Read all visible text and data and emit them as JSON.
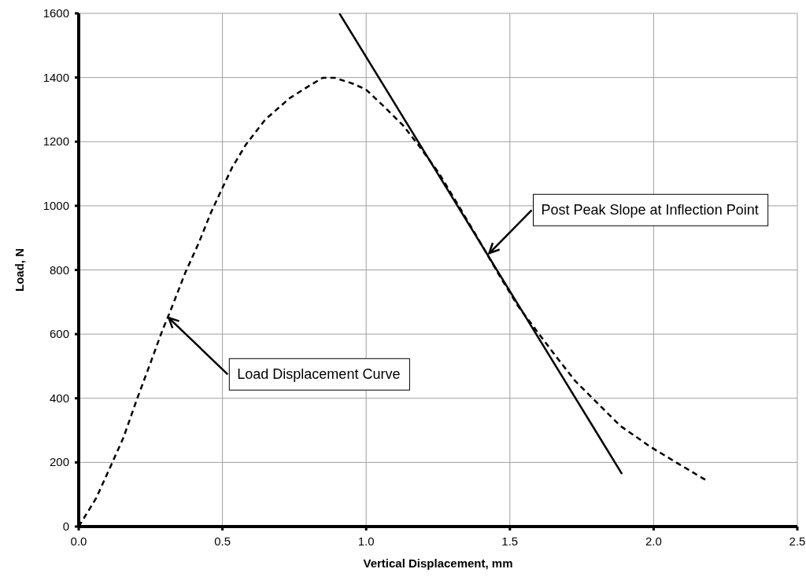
{
  "chart_data": {
    "type": "line",
    "xlabel": "Vertical Displacement, mm",
    "ylabel": "Load, N",
    "xlim": [
      0,
      2.5
    ],
    "xticks": [
      {
        "value": 0,
        "label": "0.0"
      },
      0.5,
      {
        "value": 1,
        "label": "1.0"
      },
      1.5,
      {
        "value": 2,
        "label": "2.0"
      },
      2.5
    ],
    "ylim": [
      0,
      1600
    ],
    "yticks": [
      0,
      200,
      400,
      600,
      800,
      1000,
      1200,
      1400,
      1600
    ],
    "grid": true,
    "series": [
      {
        "type": "line",
        "color": "#000000",
        "line_style": "dashed",
        "x": [
          0,
          0.061,
          0.113,
          0.155,
          0.203,
          0.25,
          0.292,
          0.318,
          0.371,
          0.418,
          0.46,
          0.499,
          0.534,
          0.581,
          0.649,
          0.733,
          0.807,
          0.849,
          0.891,
          0.95,
          0.999,
          1.065,
          1.128,
          1.181,
          1.254,
          1.317,
          1.391,
          1.464,
          1.527,
          1.59,
          1.653,
          1.727,
          1.8,
          1.884,
          1.99,
          2.084,
          2.189
        ],
        "values": [
          0,
          89,
          192,
          276,
          398,
          511,
          614,
          670,
          792,
          885,
          979,
          1054,
          1120,
          1190,
          1269,
          1335,
          1377,
          1399,
          1399,
          1382,
          1363,
          1307,
          1251,
          1190,
          1101,
          1007,
          895,
          782,
          689,
          614,
          539,
          454,
          389,
          314,
          248,
          197,
          141
        ]
      },
      {
        "type": "line",
        "color": "#000000",
        "line_style": "solid",
        "x": [
          0.907,
          1.89
        ],
        "values": [
          1600,
          164
        ]
      }
    ],
    "annotations": [
      {
        "text": "Load Displacement Curve",
        "x": 0.313,
        "y": 651
      },
      {
        "text": "Post Peak Slope at Inflection Point",
        "x": 1.428,
        "y": 852
      }
    ]
  }
}
